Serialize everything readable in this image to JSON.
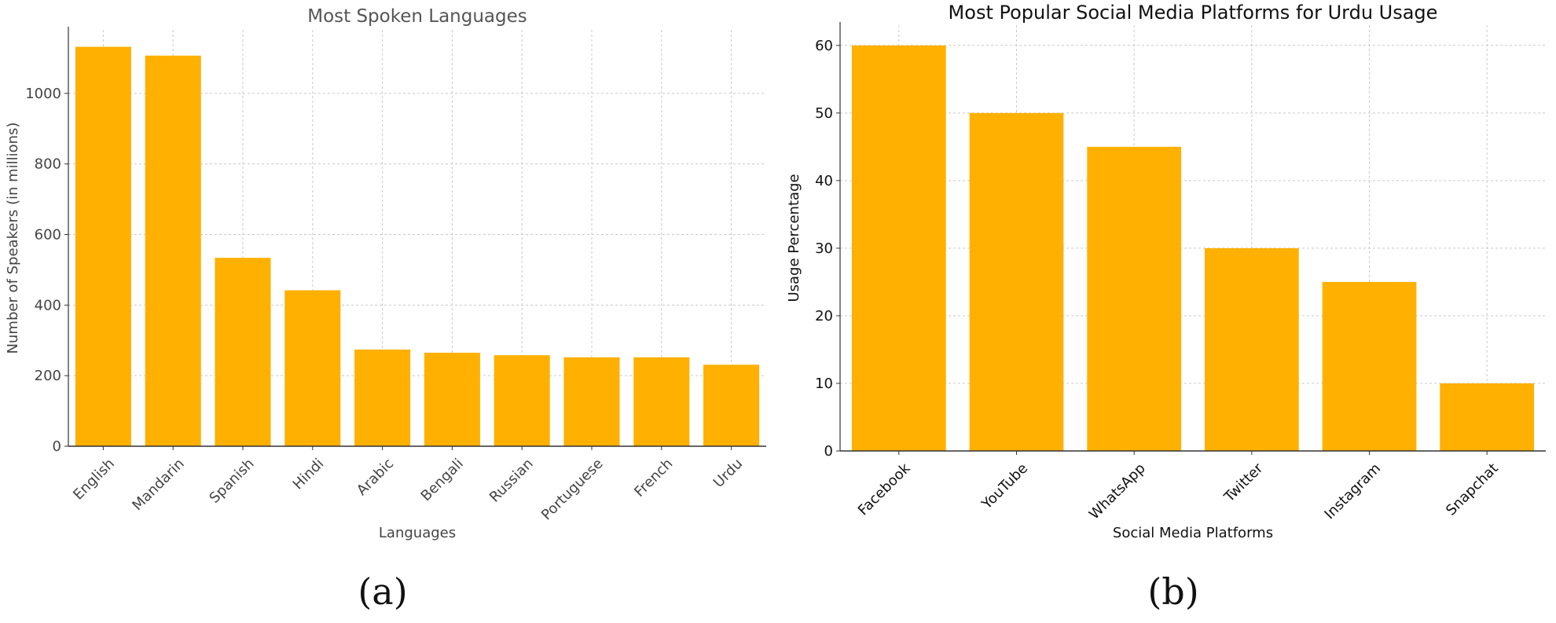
{
  "chart_data": [
    {
      "type": "bar",
      "title": "Most Spoken Languages",
      "xlabel": "Languages",
      "ylabel": "Number of Speakers (in millions)",
      "categories": [
        "English",
        "Mandarin",
        "Spanish",
        "Hindi",
        "Arabic",
        "Bengali",
        "Russian",
        "Portuguese",
        "French",
        "Urdu"
      ],
      "values": [
        1132,
        1107,
        534,
        442,
        274,
        265,
        258,
        252,
        252,
        231
      ],
      "ylim": [
        0,
        1180
      ],
      "yticks": [
        0,
        200,
        400,
        600,
        800,
        1000
      ],
      "grid": true,
      "bar_color": "#ffb000",
      "caption": "(a)"
    },
    {
      "type": "bar",
      "title": "Most Popular Social Media Platforms for Urdu Usage",
      "xlabel": "Social Media Platforms",
      "ylabel": "Usage Percentage",
      "categories": [
        "Facebook",
        "YouTube",
        "WhatsApp",
        "Twitter",
        "Instagram",
        "Snapchat"
      ],
      "values": [
        60,
        50,
        45,
        30,
        25,
        10
      ],
      "ylim": [
        0,
        63
      ],
      "yticks": [
        0,
        10,
        20,
        30,
        40,
        50,
        60
      ],
      "grid": true,
      "bar_color": "#ffb000",
      "caption": "(b)"
    }
  ]
}
